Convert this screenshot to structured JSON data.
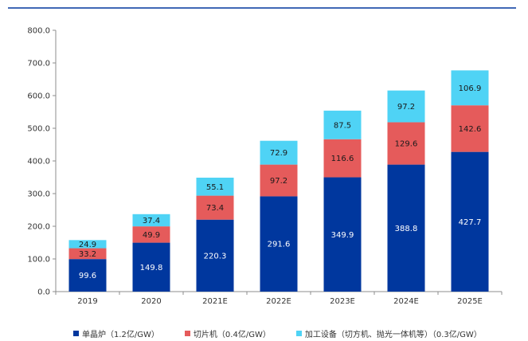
{
  "chart_data": {
    "type": "bar",
    "stacked": true,
    "categories": [
      "2019",
      "2020",
      "2021E",
      "2022E",
      "2023E",
      "2024E",
      "2025E"
    ],
    "series": [
      {
        "name": "单晶炉（1.2亿/GW）",
        "color": "#00379E",
        "label_color": "#ffffff",
        "values": [
          99.6,
          149.8,
          220.3,
          291.6,
          349.9,
          388.8,
          427.7
        ]
      },
      {
        "name": "切片机（0.4亿/GW）",
        "color": "#E55B5B",
        "label_color": "#1a1a1a",
        "values": [
          33.2,
          49.9,
          73.4,
          97.2,
          116.6,
          129.6,
          142.6
        ]
      },
      {
        "name": "加工设备（切方机、抛光一体机等）（0.3亿/GW）",
        "color": "#4FD3F5",
        "label_color": "#1a1a1a",
        "values": [
          24.9,
          37.4,
          55.1,
          72.9,
          87.5,
          97.2,
          106.9
        ]
      }
    ],
    "yticks": [
      "0.0",
      "100.0",
      "200.0",
      "300.0",
      "400.0",
      "500.0",
      "600.0",
      "700.0",
      "800.0"
    ],
    "ylim": [
      0,
      800
    ],
    "grid": false,
    "legend_position": "bottom",
    "top_rule_color": "#00379E"
  }
}
